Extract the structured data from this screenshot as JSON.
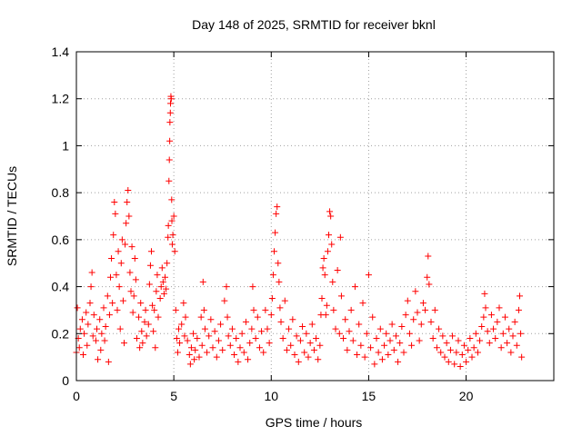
{
  "chart_data": {
    "type": "scatter",
    "title": "Day 148 of 2025, SRMTID for receiver bknl",
    "xlabel": "GPS time / hours",
    "ylabel": "SRMTID / TECUs",
    "xlim": [
      0,
      24.5
    ],
    "ylim": [
      0,
      1.4
    ],
    "x_ticks": [
      0,
      5,
      10,
      15,
      20
    ],
    "x_tick_labels": [
      "0",
      "5",
      "10",
      "15",
      "20"
    ],
    "y_ticks": [
      0,
      0.2,
      0.4,
      0.6,
      0.8,
      1,
      1.2,
      1.4
    ],
    "y_tick_labels": [
      "0",
      "0.2",
      "0.4",
      "0.6",
      "0.8",
      "1",
      "1.2",
      "1.4"
    ],
    "grid": true,
    "marker": "plus",
    "color": "#ff0000",
    "series": [
      {
        "name": "SRMTID",
        "points": [
          [
            0.0,
            0.12
          ],
          [
            0.05,
            0.31
          ],
          [
            0.1,
            0.18
          ],
          [
            0.15,
            0.14
          ],
          [
            0.2,
            0.22
          ],
          [
            0.3,
            0.26
          ],
          [
            0.35,
            0.11
          ],
          [
            0.4,
            0.2
          ],
          [
            0.5,
            0.29
          ],
          [
            0.55,
            0.15
          ],
          [
            0.6,
            0.24
          ],
          [
            0.7,
            0.33
          ],
          [
            0.75,
            0.4
          ],
          [
            0.8,
            0.46
          ],
          [
            0.85,
            0.19
          ],
          [
            0.9,
            0.28
          ],
          [
            1.0,
            0.17
          ],
          [
            1.05,
            0.22
          ],
          [
            1.1,
            0.09
          ],
          [
            1.2,
            0.26
          ],
          [
            1.25,
            0.13
          ],
          [
            1.3,
            0.2
          ],
          [
            1.4,
            0.31
          ],
          [
            1.45,
            0.17
          ],
          [
            1.5,
            0.23
          ],
          [
            1.6,
            0.36
          ],
          [
            1.65,
            0.08
          ],
          [
            1.7,
            0.28
          ],
          [
            1.75,
            0.44
          ],
          [
            1.8,
            0.52
          ],
          [
            1.85,
            0.33
          ],
          [
            1.9,
            0.62
          ],
          [
            1.95,
            0.76
          ],
          [
            2.0,
            0.71
          ],
          [
            2.05,
            0.45
          ],
          [
            2.1,
            0.3
          ],
          [
            2.15,
            0.55
          ],
          [
            2.2,
            0.4
          ],
          [
            2.25,
            0.22
          ],
          [
            2.3,
            0.5
          ],
          [
            2.35,
            0.6
          ],
          [
            2.4,
            0.34
          ],
          [
            2.45,
            0.16
          ],
          [
            2.5,
            0.58
          ],
          [
            2.55,
            0.67
          ],
          [
            2.6,
            0.76
          ],
          [
            2.65,
            0.81
          ],
          [
            2.7,
            0.7
          ],
          [
            2.75,
            0.46
          ],
          [
            2.8,
            0.38
          ],
          [
            2.85,
            0.57
          ],
          [
            2.9,
            0.29
          ],
          [
            2.95,
            0.36
          ],
          [
            3.0,
            0.52
          ],
          [
            3.05,
            0.43
          ],
          [
            3.1,
            0.18
          ],
          [
            3.2,
            0.27
          ],
          [
            3.25,
            0.14
          ],
          [
            3.3,
            0.33
          ],
          [
            3.35,
            0.21
          ],
          [
            3.4,
            0.16
          ],
          [
            3.5,
            0.25
          ],
          [
            3.55,
            0.3
          ],
          [
            3.6,
            0.19
          ],
          [
            3.7,
            0.24
          ],
          [
            3.75,
            0.41
          ],
          [
            3.8,
            0.49
          ],
          [
            3.85,
            0.55
          ],
          [
            3.9,
            0.32
          ],
          [
            3.95,
            0.21
          ],
          [
            4.0,
            0.3
          ],
          [
            4.05,
            0.14
          ],
          [
            4.1,
            0.38
          ],
          [
            4.15,
            0.45
          ],
          [
            4.2,
            0.27
          ],
          [
            4.3,
            0.35
          ],
          [
            4.35,
            0.4
          ],
          [
            4.4,
            0.48
          ],
          [
            4.45,
            0.42
          ],
          [
            4.5,
            0.37
          ],
          [
            4.55,
            0.44
          ],
          [
            4.6,
            0.39
          ],
          [
            4.65,
            0.5
          ],
          [
            4.7,
            0.61
          ],
          [
            4.72,
            0.66
          ],
          [
            4.75,
            0.85
          ],
          [
            4.77,
            0.94
          ],
          [
            4.79,
            1.02
          ],
          [
            4.8,
            1.1
          ],
          [
            4.82,
            1.14
          ],
          [
            4.83,
            1.18
          ],
          [
            4.85,
            1.21
          ],
          [
            4.87,
            1.2
          ],
          [
            4.89,
            0.77
          ],
          [
            4.9,
            0.68
          ],
          [
            4.92,
            0.58
          ],
          [
            4.95,
            0.62
          ],
          [
            5.0,
            0.7
          ],
          [
            5.05,
            0.55
          ],
          [
            5.1,
            0.3
          ],
          [
            5.15,
            0.18
          ],
          [
            5.2,
            0.12
          ],
          [
            5.25,
            0.22
          ],
          [
            5.3,
            0.16
          ],
          [
            5.4,
            0.24
          ],
          [
            5.5,
            0.33
          ],
          [
            5.55,
            0.19
          ],
          [
            5.6,
            0.27
          ],
          [
            5.7,
            0.17
          ],
          [
            5.8,
            0.11
          ],
          [
            5.85,
            0.07
          ],
          [
            5.9,
            0.14
          ],
          [
            6.0,
            0.2
          ],
          [
            6.05,
            0.09
          ],
          [
            6.1,
            0.13
          ],
          [
            6.2,
            0.18
          ],
          [
            6.3,
            0.1
          ],
          [
            6.4,
            0.27
          ],
          [
            6.45,
            0.15
          ],
          [
            6.5,
            0.42
          ],
          [
            6.55,
            0.3
          ],
          [
            6.6,
            0.22
          ],
          [
            6.7,
            0.12
          ],
          [
            6.8,
            0.19
          ],
          [
            6.9,
            0.26
          ],
          [
            7.0,
            0.14
          ],
          [
            7.1,
            0.21
          ],
          [
            7.2,
            0.1
          ],
          [
            7.3,
            0.17
          ],
          [
            7.4,
            0.24
          ],
          [
            7.5,
            0.13
          ],
          [
            7.6,
            0.34
          ],
          [
            7.7,
            0.4
          ],
          [
            7.75,
            0.27
          ],
          [
            7.8,
            0.19
          ],
          [
            7.9,
            0.15
          ],
          [
            8.0,
            0.22
          ],
          [
            8.1,
            0.11
          ],
          [
            8.2,
            0.18
          ],
          [
            8.3,
            0.08
          ],
          [
            8.4,
            0.14
          ],
          [
            8.5,
            0.2
          ],
          [
            8.6,
            0.12
          ],
          [
            8.7,
            0.25
          ],
          [
            8.8,
            0.09
          ],
          [
            8.9,
            0.16
          ],
          [
            9.0,
            0.22
          ],
          [
            9.05,
            0.4
          ],
          [
            9.1,
            0.3
          ],
          [
            9.2,
            0.18
          ],
          [
            9.3,
            0.27
          ],
          [
            9.4,
            0.14
          ],
          [
            9.5,
            0.21
          ],
          [
            9.6,
            0.12
          ],
          [
            9.7,
            0.3
          ],
          [
            9.8,
            0.22
          ],
          [
            9.9,
            0.16
          ],
          [
            10.0,
            0.28
          ],
          [
            10.05,
            0.35
          ],
          [
            10.1,
            0.45
          ],
          [
            10.15,
            0.55
          ],
          [
            10.2,
            0.63
          ],
          [
            10.25,
            0.71
          ],
          [
            10.3,
            0.74
          ],
          [
            10.35,
            0.5
          ],
          [
            10.4,
            0.42
          ],
          [
            10.45,
            0.31
          ],
          [
            10.5,
            0.25
          ],
          [
            10.6,
            0.18
          ],
          [
            10.7,
            0.34
          ],
          [
            10.8,
            0.13
          ],
          [
            10.9,
            0.22
          ],
          [
            11.0,
            0.15
          ],
          [
            11.1,
            0.26
          ],
          [
            11.2,
            0.11
          ],
          [
            11.3,
            0.19
          ],
          [
            11.4,
            0.08
          ],
          [
            11.5,
            0.17
          ],
          [
            11.6,
            0.23
          ],
          [
            11.7,
            0.12
          ],
          [
            11.8,
            0.2
          ],
          [
            11.9,
            0.1
          ],
          [
            12.0,
            0.16
          ],
          [
            12.1,
            0.24
          ],
          [
            12.2,
            0.13
          ],
          [
            12.3,
            0.18
          ],
          [
            12.4,
            0.09
          ],
          [
            12.5,
            0.15
          ],
          [
            12.55,
            0.28
          ],
          [
            12.6,
            0.35
          ],
          [
            12.65,
            0.48
          ],
          [
            12.7,
            0.52
          ],
          [
            12.75,
            0.45
          ],
          [
            12.8,
            0.28
          ],
          [
            12.85,
            0.32
          ],
          [
            12.9,
            0.55
          ],
          [
            12.95,
            0.62
          ],
          [
            13.0,
            0.72
          ],
          [
            13.05,
            0.7
          ],
          [
            13.1,
            0.58
          ],
          [
            13.15,
            0.42
          ],
          [
            13.2,
            0.3
          ],
          [
            13.3,
            0.22
          ],
          [
            13.4,
            0.47
          ],
          [
            13.5,
            0.2
          ],
          [
            13.55,
            0.61
          ],
          [
            13.6,
            0.36
          ],
          [
            13.7,
            0.18
          ],
          [
            13.8,
            0.26
          ],
          [
            13.9,
            0.13
          ],
          [
            14.0,
            0.21
          ],
          [
            14.1,
            0.3
          ],
          [
            14.2,
            0.17
          ],
          [
            14.3,
            0.4
          ],
          [
            14.4,
            0.11
          ],
          [
            14.5,
            0.24
          ],
          [
            14.6,
            0.15
          ],
          [
            14.7,
            0.33
          ],
          [
            14.8,
            0.1
          ],
          [
            14.9,
            0.2
          ],
          [
            15.0,
            0.45
          ],
          [
            15.1,
            0.14
          ],
          [
            15.2,
            0.27
          ],
          [
            15.3,
            0.07
          ],
          [
            15.4,
            0.18
          ],
          [
            15.5,
            0.12
          ],
          [
            15.6,
            0.22
          ],
          [
            15.7,
            0.09
          ],
          [
            15.8,
            0.15
          ],
          [
            15.9,
            0.2
          ],
          [
            16.0,
            0.11
          ],
          [
            16.1,
            0.17
          ],
          [
            16.2,
            0.24
          ],
          [
            16.3,
            0.13
          ],
          [
            16.4,
            0.19
          ],
          [
            16.5,
            0.08
          ],
          [
            16.6,
            0.16
          ],
          [
            16.7,
            0.23
          ],
          [
            16.8,
            0.12
          ],
          [
            16.9,
            0.28
          ],
          [
            17.0,
            0.34
          ],
          [
            17.1,
            0.2
          ],
          [
            17.2,
            0.15
          ],
          [
            17.3,
            0.26
          ],
          [
            17.4,
            0.38
          ],
          [
            17.5,
            0.29
          ],
          [
            17.6,
            0.17
          ],
          [
            17.7,
            0.24
          ],
          [
            17.8,
            0.33
          ],
          [
            17.9,
            0.3
          ],
          [
            18.0,
            0.44
          ],
          [
            18.05,
            0.53
          ],
          [
            18.1,
            0.41
          ],
          [
            18.2,
            0.25
          ],
          [
            18.3,
            0.18
          ],
          [
            18.4,
            0.3
          ],
          [
            18.5,
            0.14
          ],
          [
            18.6,
            0.22
          ],
          [
            18.7,
            0.12
          ],
          [
            18.8,
            0.19
          ],
          [
            18.9,
            0.1
          ],
          [
            19.0,
            0.16
          ],
          [
            19.1,
            0.08
          ],
          [
            19.2,
            0.13
          ],
          [
            19.3,
            0.19
          ],
          [
            19.4,
            0.07
          ],
          [
            19.5,
            0.12
          ],
          [
            19.6,
            0.17
          ],
          [
            19.7,
            0.06
          ],
          [
            19.8,
            0.11
          ],
          [
            19.9,
            0.15
          ],
          [
            20.0,
            0.08
          ],
          [
            20.1,
            0.13
          ],
          [
            20.2,
            0.18
          ],
          [
            20.3,
            0.1
          ],
          [
            20.4,
            0.14
          ],
          [
            20.5,
            0.2
          ],
          [
            20.6,
            0.12
          ],
          [
            20.7,
            0.17
          ],
          [
            20.8,
            0.23
          ],
          [
            20.9,
            0.27
          ],
          [
            20.95,
            0.37
          ],
          [
            21.0,
            0.31
          ],
          [
            21.1,
            0.21
          ],
          [
            21.2,
            0.16
          ],
          [
            21.3,
            0.28
          ],
          [
            21.4,
            0.22
          ],
          [
            21.5,
            0.18
          ],
          [
            21.6,
            0.25
          ],
          [
            21.7,
            0.31
          ],
          [
            21.8,
            0.14
          ],
          [
            21.9,
            0.2
          ],
          [
            22.0,
            0.27
          ],
          [
            22.1,
            0.16
          ],
          [
            22.2,
            0.22
          ],
          [
            22.3,
            0.12
          ],
          [
            22.4,
            0.19
          ],
          [
            22.5,
            0.25
          ],
          [
            22.6,
            0.15
          ],
          [
            22.7,
            0.3
          ],
          [
            22.75,
            0.36
          ],
          [
            22.8,
            0.2
          ],
          [
            22.85,
            0.1
          ]
        ]
      }
    ]
  }
}
